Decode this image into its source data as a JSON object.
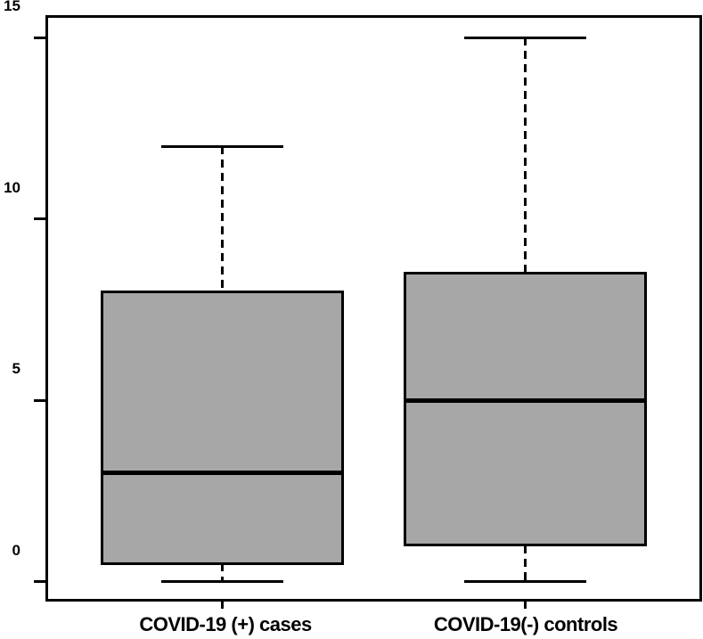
{
  "chart_data": {
    "type": "boxplot",
    "title": "",
    "xlabel": "",
    "ylabel": "",
    "categories": [
      "COVID-19 (+) cases",
      "COVID-19(-) controls"
    ],
    "series": [
      {
        "name": "COVID-19 (+) cases",
        "whisker_low": 0,
        "q1": 0.5,
        "median": 3.0,
        "q3": 8.0,
        "whisker_high": 12.0
      },
      {
        "name": "COVID-19(-) controls",
        "whisker_low": 0,
        "q1": 1.0,
        "median": 5.0,
        "q3": 8.5,
        "whisker_high": 15.0
      }
    ],
    "yticks": [
      0,
      5,
      10,
      15
    ],
    "ylim": [
      -0.5,
      15.6
    ],
    "grid": false,
    "legend": null,
    "styles": {
      "box_fill": "#a7a7a7",
      "line_color": "#000000",
      "median_color": "#000000",
      "background": "#ffffff",
      "whisker_line": "dashed"
    }
  }
}
